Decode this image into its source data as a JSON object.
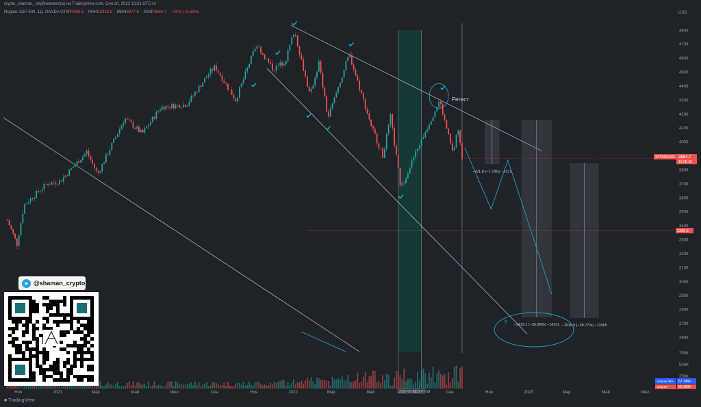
{
  "header": {
    "attribution": "crypto_shaman_ опубликовал(а) на TradingView.com, Сен 20, 2022 13:51 UTC+3",
    "symbol": "Индекс S&P 500, 1Д, OANDA",
    "open_label": "ОТКР",
    "open_value": "3905.5",
    "high_label": "МАКС",
    "high_value": "3918.5",
    "low_label": "МИН",
    "low_value": "3877.6",
    "close_label": "ЗАКР",
    "close_value": "3884.7",
    "change": "−20.8 (−0.53%)"
  },
  "telegram": {
    "handle": "@shaman_crypto",
    "icon": "telegram-icon"
  },
  "footer": {
    "brand": "TradingView"
  },
  "colors": {
    "up": "#26a69a",
    "down": "#ef5350",
    "background": "#1f2227",
    "annotation": "#00bcd4",
    "price_badge": "#ef5350"
  },
  "chart_data": {
    "type": "line",
    "series_type": "candlestick",
    "title": "",
    "currency": "USD",
    "ylim": [
      2480,
      4870
    ],
    "y_ticks": [
      2600,
      2700,
      2800,
      2900,
      3000,
      3100,
      3200,
      3300,
      3400,
      3500,
      3600,
      3700,
      3800,
      3900,
      4000,
      4100,
      4200,
      4300,
      4400,
      4500,
      4600,
      4700,
      4800
    ],
    "x_tick_labels": [
      "Ноя",
      "2021",
      "Мар",
      "Май",
      "Июл",
      "Сен",
      "Ноя",
      "2022",
      "Мар",
      "Май",
      "Июл",
      "Сен",
      "Ноя",
      "2023",
      "Мар",
      "Май",
      "Июл"
    ],
    "x_range": [
      "2020-10-10",
      "2023-08-15"
    ],
    "price_path": [
      [
        "2020-10-15",
        3440
      ],
      [
        "2020-10-30",
        3270
      ],
      [
        "2020-11-10",
        3550
      ],
      [
        "2020-12-15",
        3700
      ],
      [
        "2021-01-05",
        3720
      ],
      [
        "2021-02-15",
        3930
      ],
      [
        "2021-03-04",
        3770
      ],
      [
        "2021-04-15",
        4170
      ],
      [
        "2021-05-12",
        4060
      ],
      [
        "2021-06-10",
        4250
      ],
      [
        "2021-07-20",
        4270
      ],
      [
        "2021-08-25",
        4500
      ],
      [
        "2021-09-02",
        4540
      ],
      [
        "2021-10-04",
        4300
      ],
      [
        "2021-11-05",
        4700
      ],
      [
        "2021-12-01",
        4520
      ],
      [
        "2021-12-20",
        4580
      ],
      [
        "2022-01-03",
        4800
      ],
      [
        "2022-01-27",
        4330
      ],
      [
        "2022-02-10",
        4570
      ],
      [
        "2022-02-24",
        4170
      ],
      [
        "2022-03-29",
        4630
      ],
      [
        "2022-05-02",
        4120
      ],
      [
        "2022-05-20",
        3900
      ],
      [
        "2022-06-01",
        4180
      ],
      [
        "2022-06-17",
        3670
      ],
      [
        "2022-07-08",
        3900
      ],
      [
        "2022-08-16",
        4300
      ],
      [
        "2022-09-06",
        3910
      ],
      [
        "2022-09-13",
        4110
      ],
      [
        "2022-09-20",
        3885
      ]
    ],
    "projections": [
      {
        "label": "−321.8 (−7.74%) −3219",
        "top": 4160,
        "bottom": 3840,
        "from": "2022-10-25",
        "to": "2022-11-17"
      },
      {
        "label": "−1413.1 (−33.99%) −14131",
        "top": 4160,
        "bottom": 2745,
        "from": "2022-12-21",
        "to": "2023-02-06"
      },
      {
        "label": "−1106.9 (−28.77%) −11069",
        "top": 3850,
        "bottom": 2740,
        "from": "2023-03-06",
        "to": "2023-04-20"
      }
    ],
    "annotations": {
      "retest": "Ретест",
      "question": "?"
    },
    "current_price": {
      "value": "3884.7",
      "symbol": "SPX500USD",
      "countdown": "10:08:18"
    },
    "horizontal_level": {
      "value": "3366.5",
      "price": 3366
    },
    "highlight_range": {
      "from": "2022-06-13",
      "to": "2022-07-19",
      "from_label": "2022-06-13",
      "to_label": "2022-07-19"
    },
    "volume": {
      "label": "Volume MA",
      "value": "57.145K",
      "label2": "Volume",
      "value2": "56.989K",
      "axis_ticks": [
        "750K",
        "500K",
        "250K"
      ]
    }
  }
}
